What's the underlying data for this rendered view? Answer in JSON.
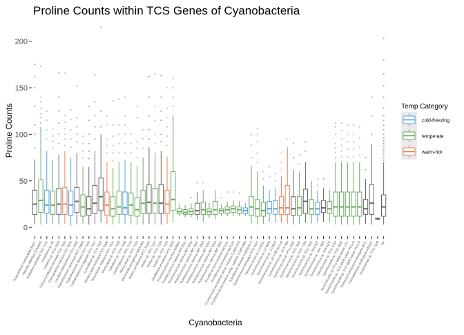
{
  "chart_data": {
    "type": "boxplot",
    "title": "Proline Counts within TCS Genes of Cyanobacteria",
    "xlabel": "Cyanobacteria",
    "ylabel": "Proline Counts",
    "ylim": [
      -8,
      222
    ],
    "yticks": [
      0,
      50,
      100,
      150,
      200
    ],
    "grid": false,
    "legend": {
      "title": "Temp Category",
      "position": "right",
      "entries": [
        {
          "key": "cold",
          "label": "cold-freezing",
          "color": "#56a0e6"
        },
        {
          "key": "temp",
          "label": "temperate",
          "color": "#6aa85f"
        },
        {
          "key": "warm",
          "label": "warm-hot",
          "color": "#f07f58"
        }
      ],
      "na_color": "#666666"
    },
    "categories": [
      {
        "label": "Acaryochloris marina MBIC11017",
        "cat": "na",
        "min": 3,
        "q1": 14,
        "med": 25,
        "q3": 40,
        "max": 73,
        "out": [
          85,
          100,
          110,
          130,
          150,
          162,
          175
        ]
      },
      {
        "label": "Aliterella atlantica CENA595",
        "cat": "temp",
        "min": 3,
        "q1": 16,
        "med": 29,
        "q3": 51,
        "max": 108,
        "out": [
          112,
          118,
          122,
          128,
          135,
          140,
          173
        ]
      },
      {
        "label": "Anabaena cylindrica PCC 7122",
        "cat": "cold",
        "min": 4,
        "q1": 15,
        "med": 24,
        "q3": 40,
        "max": 82,
        "out": [
          95,
          105,
          115,
          125
        ]
      },
      {
        "label": "Anabaena sp. 90",
        "cat": "temp",
        "min": 3,
        "q1": 14,
        "med": 24,
        "q3": 39,
        "max": 73,
        "out": [
          85,
          92,
          98,
          106
        ]
      },
      {
        "label": "Calothrix sp. PCC 6303",
        "cat": "na",
        "min": 3,
        "q1": 14,
        "med": 25,
        "q3": 42,
        "max": 78,
        "out": [
          90,
          100,
          112,
          125,
          140,
          166
        ]
      },
      {
        "label": "Chroococcidiopsis thermalis PCC 7203",
        "cat": "warm",
        "min": 4,
        "q1": 14,
        "med": 25,
        "q3": 43,
        "max": 82,
        "out": [
          88,
          95,
          100,
          106,
          113,
          120,
          166
        ]
      },
      {
        "label": "Chamaesiphon minutus PCC 6605",
        "cat": "cold",
        "min": 2,
        "q1": 13,
        "med": 24,
        "q3": 39,
        "max": 75,
        "out": [
          86,
          95,
          105,
          116,
          126
        ]
      },
      {
        "label": "Crinalium epipsammum PCC 9333",
        "cat": "na",
        "min": 3,
        "q1": 16,
        "med": 28,
        "q3": 43,
        "max": 80,
        "out": [
          92,
          100,
          108,
          118,
          152
        ]
      },
      {
        "label": "Cyanobacterium aponinum PCC 10605",
        "cat": "temp",
        "min": 4,
        "q1": 12,
        "med": 22,
        "q3": 35,
        "max": 65,
        "out": [
          75,
          82,
          90,
          98
        ]
      },
      {
        "label": "Cyanobacterium stanieri PCC 7202",
        "cat": "na",
        "min": 3,
        "q1": 13,
        "med": 20,
        "q3": 33,
        "max": 65,
        "out": [
          74,
          82,
          90,
          100,
          115,
          130
        ]
      },
      {
        "label": "Cylindrospermum stagnale PCC 7417",
        "cat": "na",
        "min": 4,
        "q1": 15,
        "med": 26,
        "q3": 45,
        "max": 82,
        "out": [
          95,
          108,
          120,
          135,
          164
        ]
      },
      {
        "label": "Cyanothece sp. PCC 7424",
        "cat": "na",
        "min": 5,
        "q1": 18,
        "med": 33,
        "q3": 53,
        "max": 100,
        "out": [
          108,
          125,
          215
        ]
      },
      {
        "label": "Geminocystis herdmanii PCC 6308",
        "cat": "warm",
        "min": 3,
        "q1": 13,
        "med": 24,
        "q3": 38,
        "max": 70,
        "out": [
          80,
          88,
          95,
          110,
          120
        ]
      },
      {
        "label": "Gloeobacter violaceus PCC 7421",
        "cat": "temp",
        "min": 3,
        "q1": 12,
        "med": 20,
        "q3": 33,
        "max": 64,
        "out": [
          72,
          80,
          88,
          98,
          110,
          136
        ]
      },
      {
        "label": "Gloeocapsa sp. PCC 7428",
        "cat": "temp",
        "min": 4,
        "q1": 14,
        "med": 22,
        "q3": 39,
        "max": 70,
        "out": [
          80,
          90,
          100,
          110,
          138
        ]
      },
      {
        "label": "Halothece sp. PCC 7418",
        "cat": "cold",
        "min": 4,
        "q1": 14,
        "med": 21,
        "q3": 38,
        "max": 72,
        "out": [
          80,
          90,
          100,
          110,
          120,
          140
        ]
      },
      {
        "label": "Leptolyngbya sp. PCC 7376",
        "cat": "temp",
        "min": 3,
        "q1": 13,
        "med": 24,
        "q3": 37,
        "max": 70,
        "out": [
          80,
          90,
          100
        ]
      },
      {
        "label": "Microcoleus sp. PCC 7113",
        "cat": "temp",
        "min": 3,
        "q1": 12,
        "med": 19,
        "q3": 32,
        "max": 66,
        "out": [
          75,
          85,
          92,
          118,
          130
        ]
      },
      {
        "label": "Microcystis aeruginosa NIES-843",
        "cat": "temp",
        "min": 3,
        "q1": 15,
        "med": 26,
        "q3": 40,
        "max": 75,
        "out": [
          85,
          95,
          105
        ]
      },
      {
        "label": "Nostoc punctiforme PCC 73102",
        "cat": "na",
        "min": 4,
        "q1": 15,
        "med": 27,
        "q3": 46,
        "max": 86,
        "out": [
          95,
          105,
          120,
          140,
          162
        ]
      },
      {
        "label": "Nostoc sp. PCC 7107",
        "cat": "temp",
        "min": 3,
        "q1": 15,
        "med": 26,
        "q3": 42,
        "max": 80,
        "out": [
          90,
          100,
          115,
          130,
          165
        ]
      },
      {
        "label": "Nostoc sp. PCC 7120",
        "cat": "na",
        "min": 3,
        "q1": 15,
        "med": 26,
        "q3": 46,
        "max": 82,
        "out": [
          92,
          100,
          115,
          125,
          140,
          163
        ]
      },
      {
        "label": "Nostoc sp. PCC 7524",
        "cat": "warm",
        "min": 4,
        "q1": 15,
        "med": 25,
        "q3": 40,
        "max": 76,
        "out": [
          88,
          98,
          108,
          118,
          128,
          150
        ]
      },
      {
        "label": "Oscillatoria acuminata PCC 6304",
        "cat": "temp",
        "min": 5,
        "q1": 18,
        "med": 30,
        "q3": 60,
        "max": 121,
        "out": [
          130,
          140,
          150,
          160
        ]
      },
      {
        "label": "Prochlorococcus marinus AS9601",
        "cat": "temp",
        "min": 12,
        "q1": 15,
        "med": 17,
        "q3": 20,
        "max": 25,
        "out": []
      },
      {
        "label": "Prochlorococcus marinus MIT 9211",
        "cat": "temp",
        "min": 11,
        "q1": 14,
        "med": 16,
        "q3": 19,
        "max": 24,
        "out": []
      },
      {
        "label": "Prochlorococcus marinus MIT 9215",
        "cat": "temp",
        "min": 11,
        "q1": 14,
        "med": 17,
        "q3": 20,
        "max": 26,
        "out": [
          32
        ]
      },
      {
        "label": "Prochlorococcus marinus MIT 9301",
        "cat": "na",
        "min": 8,
        "q1": 14,
        "med": 18,
        "q3": 26,
        "max": 38,
        "out": [
          48
        ]
      },
      {
        "label": "Prochlorococcus marinus MIT 9303",
        "cat": "temp",
        "min": 6,
        "q1": 14,
        "med": 19,
        "q3": 27,
        "max": 40,
        "out": [
          48
        ]
      },
      {
        "label": "Prochlorococcus marinus MIT 9312",
        "cat": "temp",
        "min": 10,
        "q1": 14,
        "med": 17,
        "q3": 20,
        "max": 26,
        "out": []
      },
      {
        "label": "Prochlorococcus marinus MIT 9313",
        "cat": "temp",
        "min": 8,
        "q1": 14,
        "med": 19,
        "q3": 28,
        "max": 40,
        "out": []
      },
      {
        "label": "Prochlorococcus marinus MIT 9515",
        "cat": "temp",
        "min": 12,
        "q1": 15,
        "med": 18,
        "q3": 20,
        "max": 25,
        "out": [
          32
        ]
      },
      {
        "label": "Prochlorococcus marinus NATL1A",
        "cat": "temp",
        "min": 12,
        "q1": 15,
        "med": 19,
        "q3": 22,
        "max": 28,
        "out": [
          38
        ]
      },
      {
        "label": "Prochlorococcus marinus NATL2A",
        "cat": "temp",
        "min": 12,
        "q1": 16,
        "med": 20,
        "q3": 23,
        "max": 29,
        "out": [
          38
        ]
      },
      {
        "label": "Prochlorococcus marinus subsp. marinus CCMP1375",
        "cat": "temp",
        "min": 12,
        "q1": 15,
        "med": 19,
        "q3": 22,
        "max": 28,
        "out": [
          37
        ]
      },
      {
        "label": "Prochlorococcus marinus subsp. pastoris CCMP1986",
        "cat": "cold",
        "min": 12,
        "q1": 15,
        "med": 18,
        "q3": 21,
        "max": 26,
        "out": []
      },
      {
        "label": "Rubidibacter lacunae KORDI 51-2",
        "cat": "temp",
        "min": 4,
        "q1": 13,
        "med": 22,
        "q3": 33,
        "max": 66,
        "out": [
          75,
          88,
          100
        ]
      },
      {
        "label": "Synechococcus elongatus PCC 6301",
        "cat": "temp",
        "min": 3,
        "q1": 12,
        "med": 20,
        "q3": 30,
        "max": 60,
        "out": [
          70,
          80,
          92,
          100,
          106
        ]
      },
      {
        "label": "Synechococcus sp. CC9311",
        "cat": "temp",
        "min": 4,
        "q1": 12,
        "med": 18,
        "q3": 27,
        "max": 45,
        "out": [
          52,
          60
        ]
      },
      {
        "label": "Synechococcus sp. CC9605",
        "cat": "cold",
        "min": 6,
        "q1": 15,
        "med": 20,
        "q3": 28,
        "max": 40,
        "out": [
          55,
          65
        ]
      },
      {
        "label": "Synechococcus sp. CC9902",
        "cat": "cold",
        "min": 5,
        "q1": 14,
        "med": 20,
        "q3": 29,
        "max": 42,
        "out": [
          50,
          58
        ]
      },
      {
        "label": "Synechococcus sp. JA-2-3B'a(2-13)",
        "cat": "warm",
        "min": 5,
        "q1": 14,
        "med": 21,
        "q3": 33,
        "max": 55,
        "out": [
          62,
          70,
          80
        ]
      },
      {
        "label": "Synechococcus sp. JA-3-3Ab",
        "cat": "warm",
        "min": 4,
        "q1": 14,
        "med": 21,
        "q3": 45,
        "max": 86,
        "out": [
          95
        ]
      },
      {
        "label": "Synechococcus sp. PCC 6312",
        "cat": "na",
        "min": 3,
        "q1": 13,
        "med": 20,
        "q3": 33,
        "max": 62,
        "out": [
          75,
          90
        ]
      },
      {
        "label": "Synechococcus sp. PCC 7002",
        "cat": "temp",
        "min": 4,
        "q1": 13,
        "med": 21,
        "q3": 33,
        "max": 60,
        "out": [
          68,
          78
        ]
      },
      {
        "label": "Synechococcus sp. PCC 7335",
        "cat": "na",
        "min": 5,
        "q1": 15,
        "med": 28,
        "q3": 41,
        "max": 70,
        "out": [
          82,
          92
        ]
      },
      {
        "label": "Synechococcus sp. PCC 7502",
        "cat": "temp",
        "min": 4,
        "q1": 14,
        "med": 20,
        "q3": 30,
        "max": 50,
        "out": []
      },
      {
        "label": "Synechococcus sp. RCC307",
        "cat": "cold",
        "min": 5,
        "q1": 14,
        "med": 20,
        "q3": 27,
        "max": 40,
        "out": [
          45,
          52
        ]
      },
      {
        "label": "Synechococcus sp. WH 7803",
        "cat": "na",
        "min": 6,
        "q1": 16,
        "med": 21,
        "q3": 29,
        "max": 42,
        "out": [
          52
        ]
      },
      {
        "label": "Synechococcus sp. WH 8102",
        "cat": "temp",
        "min": 6,
        "q1": 15,
        "med": 20,
        "q3": 28,
        "max": 40,
        "out": []
      },
      {
        "label": "Synechocystis sp. PCC 6714",
        "cat": "temp",
        "min": 3,
        "q1": 12,
        "med": 22,
        "q3": 38,
        "max": 70,
        "out": [
          75,
          80,
          85,
          90,
          100,
          108,
          112
        ]
      },
      {
        "label": "Synechocystis sp. PCC 6803",
        "cat": "temp",
        "min": 3,
        "q1": 12,
        "med": 22,
        "q3": 38,
        "max": 70,
        "out": [
          76,
          82,
          88,
          95,
          104,
          112
        ]
      },
      {
        "label": "Synechocystis sp. PCC 6803 substr. GT-I",
        "cat": "temp",
        "min": 3,
        "q1": 12,
        "med": 22,
        "q3": 38,
        "max": 70,
        "out": [
          76,
          84,
          92,
          100,
          110
        ]
      },
      {
        "label": "Synechocystis sp. PCC 6803 substr. PCC-N",
        "cat": "temp",
        "min": 3,
        "q1": 12,
        "med": 22,
        "q3": 38,
        "max": 70,
        "out": [
          76,
          84,
          92,
          100,
          110
        ]
      },
      {
        "label": "Synechocystis sp. PCC 6803 substr. PCC-P",
        "cat": "temp",
        "min": 3,
        "q1": 12,
        "med": 22,
        "q3": 38,
        "max": 70,
        "out": [
          78,
          86,
          96,
          108
        ]
      },
      {
        "label": "Thermosynechococcus elongatus BP-1",
        "cat": "na",
        "min": 4,
        "q1": 14,
        "med": 20,
        "q3": 30,
        "max": 52,
        "out": [
          62,
          75
        ]
      },
      {
        "label": "Trichodesmium erythraeum IMS101",
        "cat": "na",
        "min": 3,
        "q1": 14,
        "med": 26,
        "q3": 46,
        "max": 90,
        "out": [
          100,
          120,
          140
        ]
      },
      {
        "label": "Nostocaceae sp. PCC 7108",
        "cat": "na",
        "min": 8,
        "q1": 9,
        "med": 9,
        "q3": 10,
        "max": 10,
        "out": []
      },
      {
        "label": "NA",
        "cat": "na",
        "min": 3,
        "q1": 12,
        "med": 22,
        "q3": 35,
        "max": 70,
        "out": [
          72,
          75,
          78,
          81,
          84,
          87,
          90,
          93,
          96,
          100,
          105,
          110,
          115,
          120,
          128,
          140,
          152,
          165,
          180,
          203
        ]
      }
    ]
  }
}
